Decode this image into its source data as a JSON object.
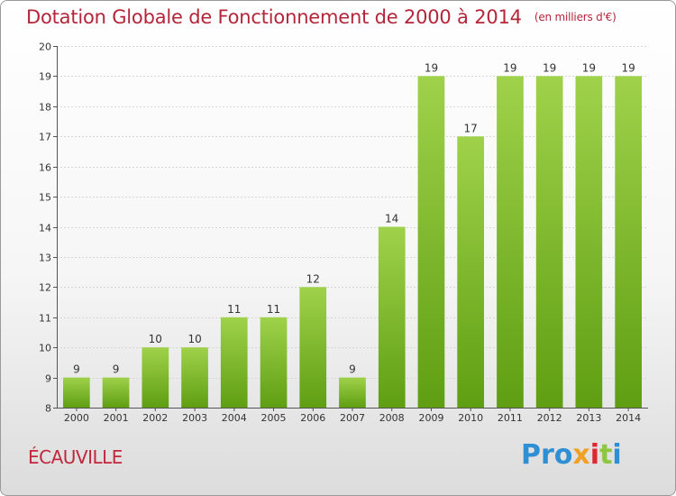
{
  "chart_data": {
    "type": "bar",
    "title": "Dotation Globale de Fonctionnement de 2000 à 2014",
    "unit": "(en milliers d'€)",
    "categories": [
      "2000",
      "2001",
      "2002",
      "2003",
      "2004",
      "2005",
      "2006",
      "2007",
      "2008",
      "2009",
      "2010",
      "2011",
      "2012",
      "2013",
      "2014"
    ],
    "values": [
      9,
      9,
      10,
      10,
      11,
      11,
      12,
      9,
      14,
      19,
      17,
      19,
      19,
      19,
      19
    ],
    "ylim": [
      8,
      20
    ],
    "yticks": [
      8,
      9,
      10,
      11,
      12,
      13,
      14,
      15,
      16,
      17,
      18,
      19,
      20
    ],
    "grid": true,
    "bar_color": "#7cbf2b"
  },
  "commune": "ÉCAUVILLE",
  "logo": {
    "p1": "Pro",
    "p2": "x",
    "p3": "i",
    "p4": "t",
    "p5": "i"
  }
}
